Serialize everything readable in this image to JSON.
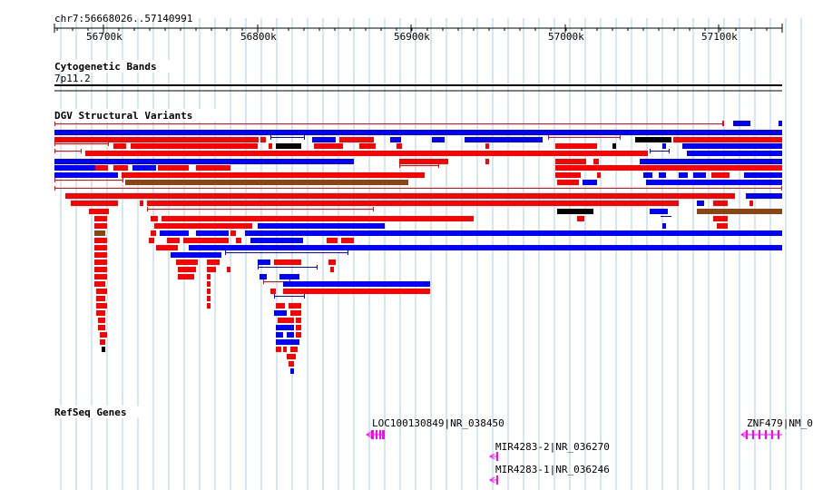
{
  "coordinate_header": "chr7:56668026..57140991",
  "ruler_ticks": [
    "56700k",
    "56800k",
    "56900k",
    "57000k",
    "57100k"
  ],
  "tracks": {
    "cytoband": {
      "title": "Cytogenetic Bands",
      "band": "7p11.2"
    },
    "dgv": {
      "title": "DGV Structural Variants"
    },
    "refseq": {
      "title": "RefSeq Genes",
      "genes": [
        {
          "label": "LOC100130849|NR_038450"
        },
        {
          "label": "MIR4283-2|NR_036270"
        },
        {
          "label": "MIR4283-1|NR_036246"
        },
        {
          "label": "ZNF479|NM_0"
        }
      ]
    }
  },
  "colors": {
    "gridline": "#a8d0e6",
    "variant_loss": "#ff0000",
    "variant_gain": "#0000ff",
    "variant_inversion": "#8b4513",
    "variant_complex": "#000000",
    "gene": "#ff00ff"
  }
}
